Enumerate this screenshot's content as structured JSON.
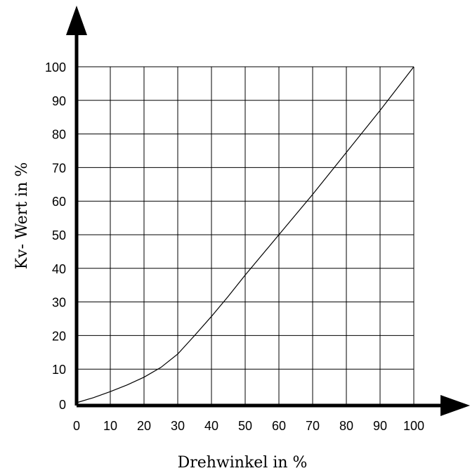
{
  "chart_data": {
    "type": "line",
    "title": "",
    "xlabel": "Drehwinkel in %",
    "ylabel": "Kv- Wert in %",
    "xlim": [
      0,
      100
    ],
    "ylim": [
      0,
      100
    ],
    "x_ticks": [
      "0",
      "10",
      "20",
      "30",
      "40",
      "50",
      "60",
      "70",
      "80",
      "90",
      "100"
    ],
    "y_ticks": [
      "0",
      "10",
      "20",
      "30",
      "40",
      "50",
      "60",
      "70",
      "80",
      "90",
      "100"
    ],
    "grid": true,
    "series": [
      {
        "x": [
          0,
          5,
          10,
          15,
          20,
          25,
          30,
          35,
          40,
          45,
          50,
          60,
          70,
          80,
          90,
          100
        ],
        "values": [
          0,
          1.5,
          3.3,
          5.3,
          7.6,
          10.5,
          14.5,
          20,
          25.7,
          31.7,
          38,
          50,
          62,
          74.5,
          87,
          100
        ]
      }
    ]
  }
}
